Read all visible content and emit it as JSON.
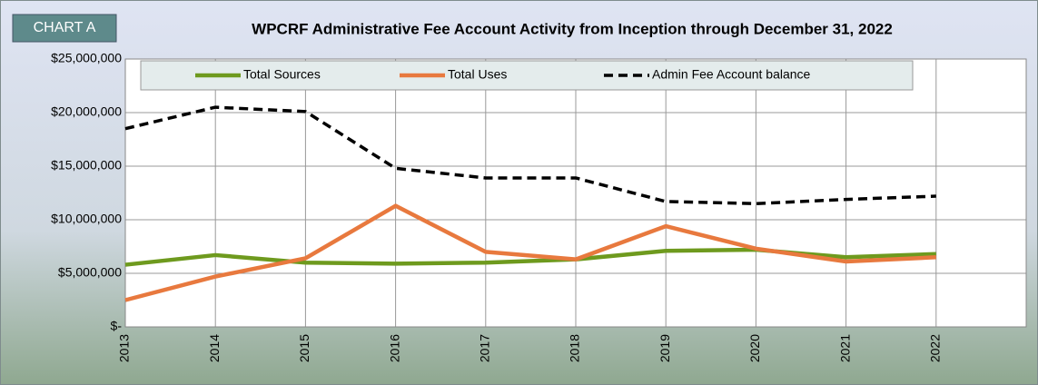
{
  "chart_data": {
    "type": "line",
    "badge": "CHART A",
    "title": "WPCRF Administrative Fee Account Activity from Inception through December 31, 2022",
    "categories": [
      "2013",
      "2014",
      "2015",
      "2016",
      "2017",
      "2018",
      "2019",
      "2020",
      "2021",
      "2022"
    ],
    "series": [
      {
        "name": "Total Sources",
        "color": "#6e9a1e",
        "dash": "solid",
        "values": [
          5800000,
          6700000,
          6000000,
          5900000,
          6000000,
          6300000,
          7100000,
          7200000,
          6500000,
          6800000
        ]
      },
      {
        "name": "Total Uses",
        "color": "#e8793e",
        "dash": "solid",
        "values": [
          2500000,
          4700000,
          6400000,
          11300000,
          7000000,
          6300000,
          9400000,
          7300000,
          6100000,
          6500000
        ]
      },
      {
        "name": "Admin Fee Account balance",
        "color": "#000000",
        "dash": "dashed",
        "values": [
          18500000,
          20500000,
          20100000,
          14800000,
          13900000,
          13900000,
          11700000,
          11500000,
          11900000,
          12200000
        ]
      }
    ],
    "ylim": [
      0,
      25000000
    ],
    "yticks": [
      {
        "value": 0,
        "label": "$-"
      },
      {
        "value": 5000000,
        "label": "$5,000,000"
      },
      {
        "value": 10000000,
        "label": "$10,000,000"
      },
      {
        "value": 15000000,
        "label": "$15,000,000"
      },
      {
        "value": 20000000,
        "label": "$20,000,000"
      },
      {
        "value": 25000000,
        "label": "$25,000,000"
      }
    ],
    "grid": true,
    "legend": "top"
  }
}
